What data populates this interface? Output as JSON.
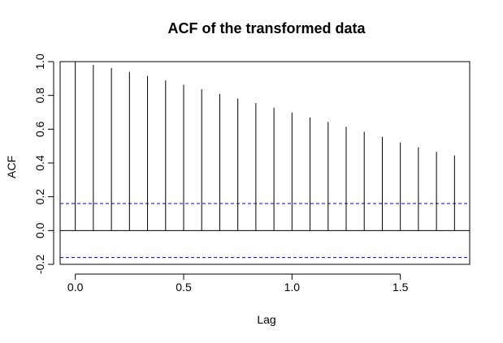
{
  "chart_data": {
    "type": "bar",
    "title": "ACF of the transformed data",
    "xlabel": "Lag",
    "ylabel": "ACF",
    "xlim": [
      -0.07,
      1.82
    ],
    "ylim": [
      -0.2,
      1.0
    ],
    "x_ticks": [
      {
        "value": 0.0,
        "label": "0.0"
      },
      {
        "value": 0.5,
        "label": "0.5"
      },
      {
        "value": 1.0,
        "label": "1.0"
      },
      {
        "value": 1.5,
        "label": "1.5"
      }
    ],
    "y_ticks": [
      {
        "value": -0.2,
        "label": "-0.2"
      },
      {
        "value": 0.0,
        "label": "0.0"
      },
      {
        "value": 0.2,
        "label": "0.2"
      },
      {
        "value": 0.4,
        "label": "0.4"
      },
      {
        "value": 0.6,
        "label": "0.6"
      },
      {
        "value": 0.8,
        "label": "0.8"
      },
      {
        "value": 1.0,
        "label": "1.0"
      }
    ],
    "lags": [
      0.0,
      0.0833,
      0.1667,
      0.25,
      0.3333,
      0.4167,
      0.5,
      0.5833,
      0.6667,
      0.75,
      0.8333,
      0.9167,
      1.0,
      1.0833,
      1.1667,
      1.25,
      1.3333,
      1.4167,
      1.5,
      1.5833,
      1.6667,
      1.75
    ],
    "values": [
      1.0,
      0.98,
      0.962,
      0.94,
      0.915,
      0.889,
      0.863,
      0.836,
      0.809,
      0.782,
      0.755,
      0.727,
      0.699,
      0.67,
      0.643,
      0.614,
      0.585,
      0.555,
      0.522,
      0.493,
      0.466,
      0.445
    ],
    "confidence_bound": 0.16,
    "confidence_line_color": "#0000cc",
    "bar_color": "#000000",
    "zero_line": true,
    "grid": false,
    "legend": "none"
  }
}
